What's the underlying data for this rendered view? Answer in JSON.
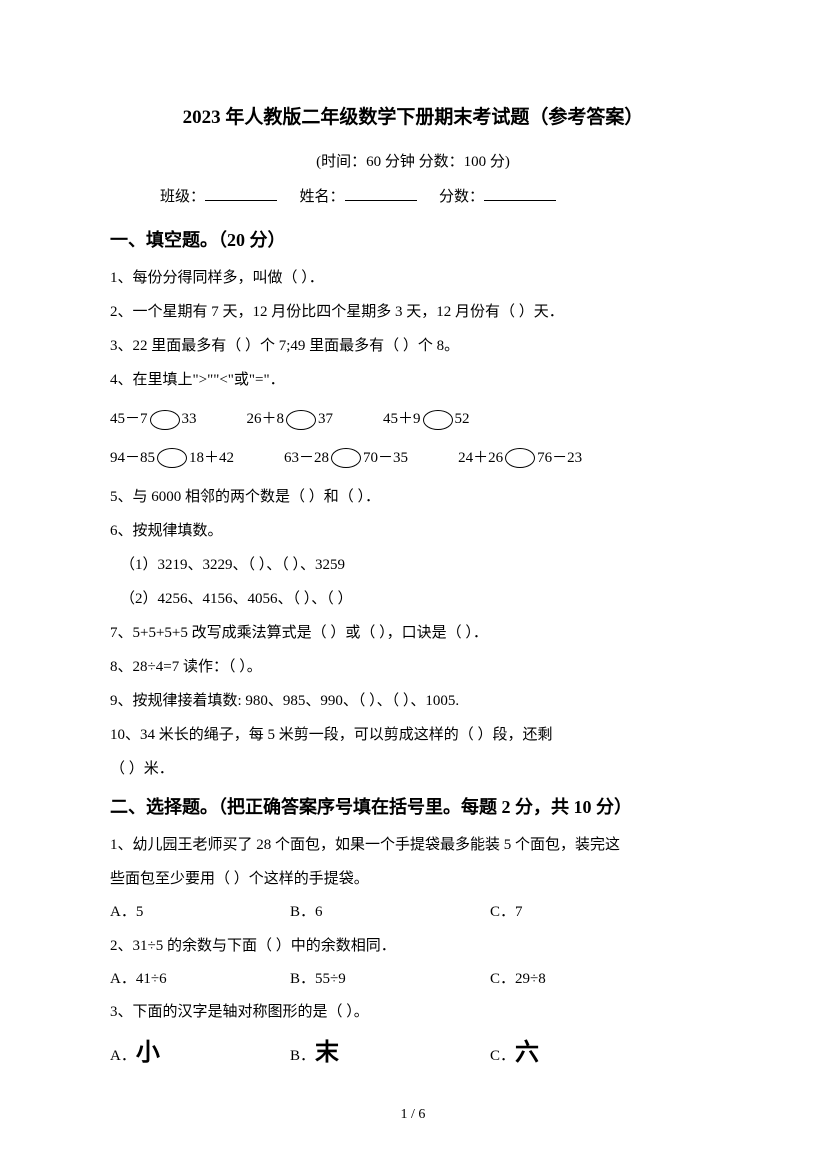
{
  "title": "2023 年人教版二年级数学下册期末考试题（参考答案）",
  "subtitle": "(时间：60 分钟    分数：100 分)",
  "info": {
    "class_label": "班级：",
    "name_label": "姓名：",
    "score_label": "分数："
  },
  "section1": {
    "header": "一、填空题。（20 分）",
    "q1": "1、每份分得同样多，叫做（        ）．",
    "q2": "2、一个星期有 7 天，12 月份比四个星期多 3 天，12 月份有（        ）天．",
    "q3": "3、22 里面最多有（        ）个 7;49 里面最多有（        ）个 8。",
    "q4": "4、在里填上\">\"\"<\"或\"=\"．",
    "compare_row1": {
      "a_left": "45－7",
      "a_right": "33",
      "b_left": "26＋8",
      "b_right": "37",
      "c_left": "45＋9",
      "c_right": "52"
    },
    "compare_row2": {
      "a_left": "94－85",
      "a_right": "18＋42",
      "b_left": "63－28",
      "b_right": "70－35",
      "c_left": "24＋26",
      "c_right": "76－23"
    },
    "q5": "5、与 6000 相邻的两个数是（        ）和（        ）．",
    "q6": "6、按规律填数。",
    "q6_1": "（1）3219、3229、（        ）、（        ）、3259",
    "q6_2": "（2）4256、4156、4056、（        ）、（        ）",
    "q7": "7、5+5+5+5 改写成乘法算式是（        ）或（        ），口诀是（        ）．",
    "q8": "8、28÷4=7 读作：（        ）。",
    "q9": "9、按规律接着填数: 980、985、990、（        ）、（        ）、1005.",
    "q10": "10、34 米长的绳子，每 5 米剪一段，可以剪成这样的（        ）段，还剩",
    "q10_2": "（        ）米．"
  },
  "section2": {
    "header": "二、选择题。（把正确答案序号填在括号里。每题 2 分，共 10 分）",
    "q1_line1": "1、幼儿园王老师买了 28 个面包，如果一个手提袋最多能装 5 个面包，装完这",
    "q1_line2": "些面包至少要用（        ）个这样的手提袋。",
    "q1_opts": {
      "a": "A．5",
      "b": "B．6",
      "c": "C．7"
    },
    "q2": "2、31÷5 的余数与下面（        ）中的余数相同．",
    "q2_opts": {
      "a": "A．41÷6",
      "b": "B．55÷9",
      "c": "C．29÷8"
    },
    "q3": "3、下面的汉字是轴对称图形的是（        ）。",
    "q3_opts": {
      "a_pre": "A．",
      "a_char": "小",
      "b_pre": "B．",
      "b_char": "末",
      "c_pre": "C．",
      "c_char": "六"
    }
  },
  "page_num": "1 / 6"
}
